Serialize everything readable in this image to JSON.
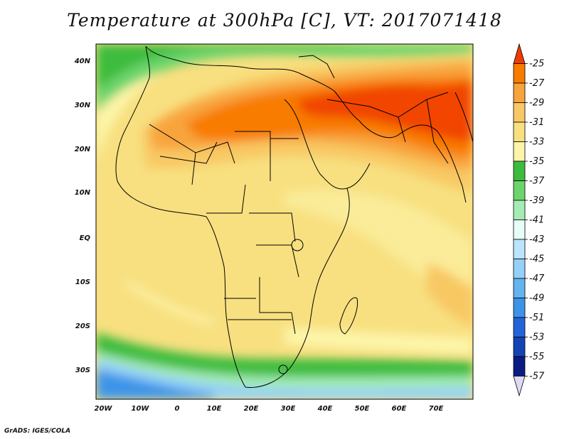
{
  "title": "Temperature at 300hPa [C], VT: 2017071418",
  "credit": "GrADS: IGES/COLA",
  "map": {
    "variable": "Temperature at 300hPa",
    "units": "C",
    "valid_time": "2017071418",
    "lon_range": [
      -22,
      80
    ],
    "lat_range": [
      -36,
      44
    ],
    "x_ticks": [
      "20W",
      "10W",
      "0",
      "10E",
      "20E",
      "30E",
      "40E",
      "50E",
      "60E",
      "70E"
    ],
    "y_ticks": [
      "40N",
      "30N",
      "20N",
      "10N",
      "EQ",
      "10S",
      "20S",
      "30S"
    ]
  },
  "colorbar": {
    "levels": [
      "-25",
      "-27",
      "-29",
      "-31",
      "-33",
      "-35",
      "-37",
      "-39",
      "-41",
      "-43",
      "-45",
      "-47",
      "-49",
      "-51",
      "-53",
      "-55",
      "-57"
    ],
    "colors": [
      "#f03c00",
      "#f87c00",
      "#f8a43c",
      "#f8c864",
      "#f8e080",
      "#fcf4a8",
      "#3cbc3c",
      "#6cd46c",
      "#a4ecb4",
      "#e8fcf8",
      "#bce4fc",
      "#94d0f8",
      "#64b4f0",
      "#3c94e8",
      "#2464d8",
      "#1444b4",
      "#0a1c84",
      "#dcdcf8"
    ]
  }
}
